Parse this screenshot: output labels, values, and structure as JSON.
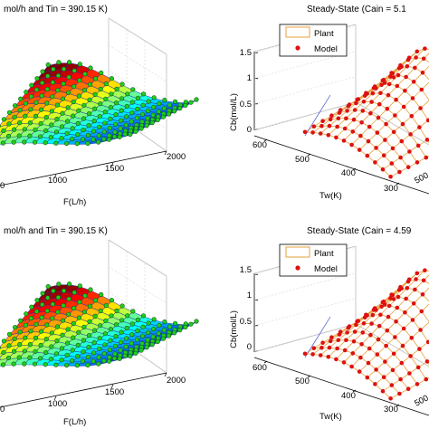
{
  "panels": [
    {
      "title": "mol/h and Tin = 390.15 K)",
      "xlabel": "F(L/h)",
      "x_ticks": [
        "1000",
        "1500",
        "2000"
      ],
      "x_tick_partial": "0"
    },
    {
      "title": "Steady-State (Cain = 5.1",
      "ylabel": "Cb(mol/L)",
      "z_ticks": [
        "0",
        "0.5",
        "1",
        "1.5"
      ],
      "tw_label": "Tw(K)",
      "tw_ticks": [
        "300",
        "400",
        "500",
        "600"
      ],
      "right_partial": "500",
      "legend": [
        "Plant",
        "Model"
      ]
    },
    {
      "title": "mol/h and Tin = 390.15 K)",
      "xlabel": "F(L/h)",
      "x_ticks": [
        "1000",
        "1500",
        "2000"
      ],
      "x_tick_partial": "0"
    },
    {
      "title": "Steady-State (Cain = 4.59",
      "ylabel": "Cb(mol/L)",
      "z_ticks": [
        "0",
        "0.5",
        "1",
        "1.5"
      ],
      "tw_label": "Tw(K)",
      "tw_ticks": [
        "300",
        "400",
        "500",
        "600"
      ],
      "right_partial": "500",
      "legend": [
        "Plant",
        "Model"
      ]
    }
  ],
  "chart_data": [
    {
      "type": "surface",
      "title": "mol/h and Tin = 390.15 K)",
      "xlabel": "F(L/h)",
      "x_ticks": [
        1000,
        1500,
        2000
      ],
      "xlim": [
        500,
        2000
      ],
      "surface_colormap": "jet",
      "marker_color": "#22cc22",
      "grid": true
    },
    {
      "type": "surface",
      "title": "Steady-State (Cain = 5.1",
      "xlabel": "Tw(K)",
      "ylabel": "Cb(mol/L)",
      "x_ticks": [
        300,
        400,
        500,
        600
      ],
      "zlim": [
        0,
        1.5
      ],
      "z_ticks": [
        0,
        0.5,
        1,
        1.5
      ],
      "legend": [
        "Plant",
        "Model"
      ],
      "legend_position": "top-left",
      "plant_color": "#e6a23a",
      "model_color": "#dd1111",
      "grid": true
    },
    {
      "type": "surface",
      "title": "mol/h and Tin = 390.15 K)",
      "xlabel": "F(L/h)",
      "x_ticks": [
        1000,
        1500,
        2000
      ],
      "xlim": [
        500,
        2000
      ],
      "surface_colormap": "jet",
      "marker_color": "#22cc22",
      "grid": true
    },
    {
      "type": "surface",
      "title": "Steady-State (Cain = 4.59",
      "xlabel": "Tw(K)",
      "ylabel": "Cb(mol/L)",
      "x_ticks": [
        300,
        400,
        500,
        600
      ],
      "zlim": [
        0,
        1.5
      ],
      "z_ticks": [
        0,
        0.5,
        1,
        1.5
      ],
      "legend": [
        "Plant",
        "Model"
      ],
      "legend_position": "top-left",
      "plant_color": "#e6a23a",
      "model_color": "#dd1111",
      "grid": true
    }
  ]
}
